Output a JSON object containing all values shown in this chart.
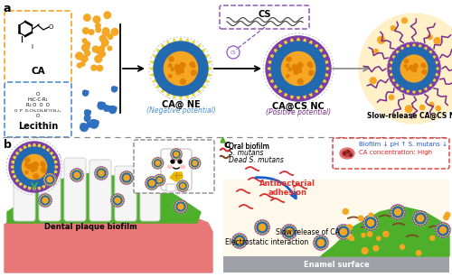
{
  "bg_color": "#ffffff",
  "orange": "#F5A623",
  "blue_shell": "#2369B0",
  "purple_outer": "#7B3FA6",
  "purple_chain": "#7B2D8B",
  "yellow_spike": "#F0E040",
  "green_bio": "#4DAF2A",
  "red_gum": "#E87070",
  "red_bacteria": "#D63030",
  "brown_dead": "#7B4A28",
  "gray_enamel": "#A0A0A0",
  "orange_box": "#F5A623",
  "blue_box": "#5090D0",
  "purple_box": "#9C5DB8",
  "light_yellow_bg": "#FFF8DC",
  "light_peach_bg": "#FFF0D0",
  "arrow_gray": "#808080",
  "label_a": "a",
  "label_b": "b",
  "label_c": "c",
  "label_ca": "CA",
  "label_lecithin": "Lecithin",
  "label_cs": "CS",
  "label_cane": "CA@ NE",
  "label_cane_sub": "(Negative potential)",
  "label_canc": "CA@CS NC",
  "label_canc_sub": "(Positive potential)",
  "label_slow": "Slow-release CA@CS NC",
  "label_oral_biofilm": "Oral biofilm",
  "label_s_mutans": "S. mutans",
  "label_dead": "Dead S. mutans",
  "label_dental": "Dental plaque biofilm",
  "label_antibacterial": "Antibacterial\nadhesion",
  "label_electrostatic": "Electrostatic interaction",
  "label_slow_release": "Slow release of CA",
  "label_enamel": "Enamel surface",
  "label_biofilm_box1": "Biofilm ↓ pH ↑ S. mutans ↓",
  "label_ca_conc": "CA concentration: High"
}
